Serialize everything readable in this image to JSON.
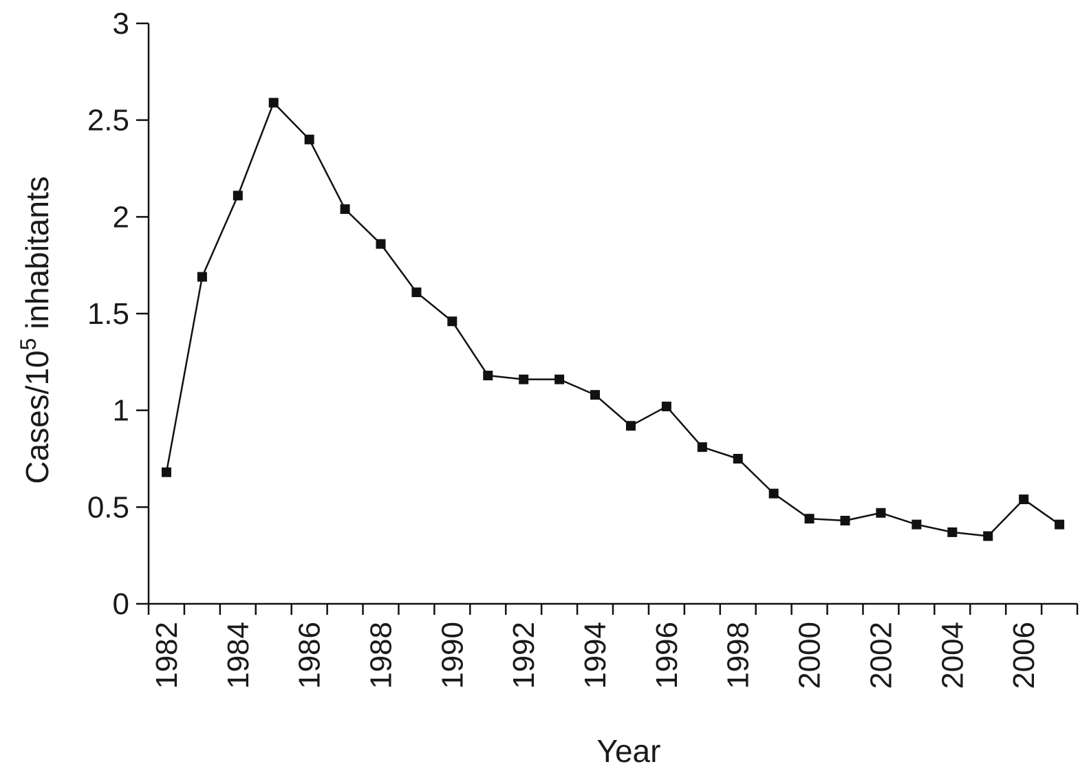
{
  "chart_data": {
    "type": "line",
    "title": "",
    "xlabel": "Year",
    "ylabel": {
      "prefix": "Cases/10",
      "superscript": "5",
      "suffix": " inhabitants"
    },
    "xlim": [
      1981.5,
      2007.5
    ],
    "ylim": [
      0,
      3
    ],
    "yticks": [
      0,
      0.5,
      1,
      1.5,
      2,
      2.5,
      3
    ],
    "ytick_labels": [
      "0",
      "0.5",
      "1",
      "1.5",
      "2",
      "2.5",
      "3"
    ],
    "xticks_labeled": [
      1982,
      1984,
      1986,
      1988,
      1990,
      1992,
      1994,
      1996,
      1998,
      2000,
      2002,
      2004,
      2006
    ],
    "xtick_labels": [
      "1982",
      "1984",
      "1986",
      "1988",
      "1990",
      "1992",
      "1994",
      "1996",
      "1998",
      "2000",
      "2002",
      "2004",
      "2006"
    ],
    "marker": "square",
    "line_color": "#111111",
    "grid": false,
    "x": [
      1982,
      1983,
      1984,
      1985,
      1986,
      1987,
      1988,
      1989,
      1990,
      1991,
      1992,
      1993,
      1994,
      1995,
      1996,
      1997,
      1998,
      1999,
      2000,
      2001,
      2002,
      2003,
      2004,
      2005,
      2006,
      2007
    ],
    "y": [
      0.68,
      1.69,
      2.11,
      2.59,
      2.4,
      2.04,
      1.86,
      1.61,
      1.46,
      1.18,
      1.16,
      1.16,
      1.08,
      0.92,
      1.02,
      0.81,
      0.75,
      0.57,
      0.44,
      0.43,
      0.47,
      0.41,
      0.37,
      0.35,
      0.54,
      0.41
    ]
  }
}
